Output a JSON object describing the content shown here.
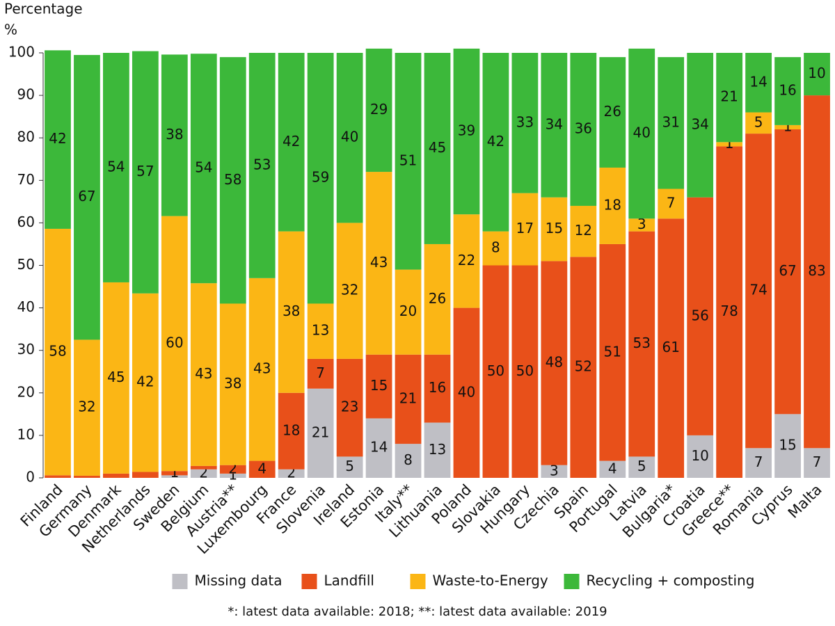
{
  "chart_data": {
    "type": "stacked-bar",
    "y_label_line1": "Percentage",
    "y_label_line2": "%",
    "footnote": "*: latest data available: 2018; **: latest data available: 2019",
    "categories": [
      "Finland",
      "Germany",
      "Denmark",
      "Netherlands",
      "Sweden",
      "Belgium",
      "Austria**",
      "Luxembourg",
      "France",
      "Slovenia",
      "Ireland",
      "Estonia",
      "Italy**",
      "Lithuania",
      "Poland",
      "Slovakia",
      "Hungary",
      "Czechia",
      "Spain",
      "Portugal",
      "Latvia",
      "Bulgaria*",
      "Croatia",
      "Greece**",
      "Romania",
      "Cyprus",
      "Malta"
    ],
    "series": [
      {
        "name": "Missing data",
        "color": "#bfbfc5",
        "values": [
          0,
          0,
          0,
          0,
          0.6,
          2,
          1,
          0,
          2,
          21,
          5,
          14,
          8,
          13,
          0,
          0,
          0,
          3,
          0,
          4,
          5,
          0,
          10,
          0,
          7,
          15,
          7
        ],
        "value_labels": [
          null,
          null,
          null,
          null,
          null,
          2,
          1,
          null,
          2,
          21,
          5,
          14,
          8,
          13,
          null,
          null,
          null,
          3,
          null,
          4,
          5,
          null,
          10,
          null,
          7,
          15,
          7
        ]
      },
      {
        "name": "Landfill",
        "color": "#e8501a",
        "values": [
          0.6,
          0.5,
          1,
          1.4,
          1,
          0.8,
          2,
          4,
          18,
          7,
          23,
          15,
          21,
          16,
          40,
          50,
          50,
          48,
          52,
          51,
          53,
          61,
          56,
          78,
          74,
          67,
          83
        ],
        "value_labels": [
          null,
          null,
          null,
          null,
          1,
          null,
          2,
          4,
          18,
          7,
          23,
          15,
          21,
          16,
          40,
          50,
          50,
          48,
          52,
          51,
          53,
          61,
          56,
          78,
          74,
          67,
          83
        ]
      },
      {
        "name": "Waste-to-Energy",
        "color": "#fbb615",
        "values": [
          58,
          32,
          45,
          42,
          60,
          43,
          38,
          43,
          38,
          13,
          32,
          43,
          20,
          26,
          22,
          8,
          17,
          15,
          12,
          18,
          3,
          7,
          0,
          1,
          5,
          1,
          0
        ],
        "value_labels": [
          58,
          32,
          45,
          42,
          60,
          43,
          38,
          43,
          38,
          13,
          32,
          43,
          20,
          26,
          22,
          8,
          17,
          15,
          12,
          18,
          3,
          7,
          null,
          1,
          5,
          1,
          null
        ]
      },
      {
        "name": "Recycling + composting",
        "color": "#3cb83a",
        "values": [
          42,
          67,
          54,
          57,
          38,
          54,
          58,
          53,
          42,
          59,
          40,
          29,
          51,
          45,
          39,
          42,
          33,
          34,
          36,
          26,
          40,
          31,
          34,
          21,
          14,
          16,
          10
        ],
        "value_labels": [
          42,
          67,
          54,
          57,
          38,
          54,
          58,
          53,
          42,
          59,
          40,
          29,
          51,
          45,
          39,
          42,
          33,
          34,
          36,
          26,
          40,
          31,
          34,
          21,
          14,
          16,
          10
        ]
      }
    ],
    "ylim": [
      0,
      100
    ],
    "yticks": [
      0,
      10,
      20,
      30,
      40,
      50,
      60,
      70,
      80,
      90,
      100
    ],
    "legend": "bottom"
  }
}
